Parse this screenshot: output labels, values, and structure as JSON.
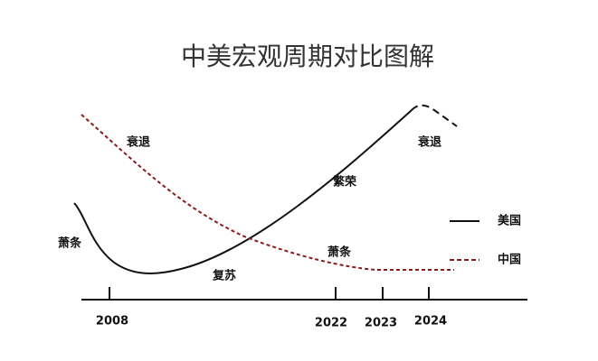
{
  "title": "中美宏观周期对比图解",
  "annotations": [
    "衰退",
    "萧条",
    "复苏",
    "繁荣",
    "萧条",
    "衰退"
  ],
  "x_axis": {
    "labels": [
      "2008",
      "2022",
      "2023",
      "2024"
    ]
  },
  "legend": {
    "entries": [
      "美国",
      "中国"
    ]
  }
}
